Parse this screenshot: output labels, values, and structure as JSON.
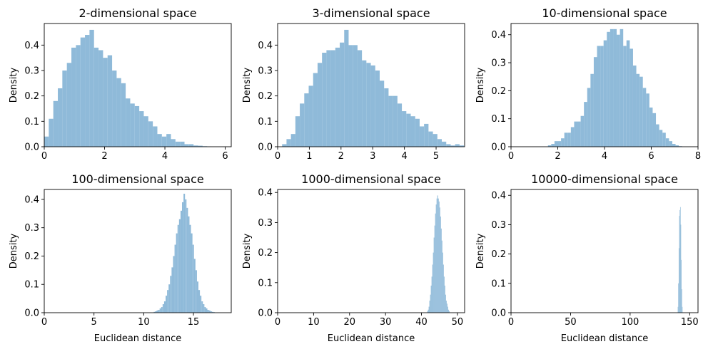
{
  "chart_data": [
    {
      "type": "bar",
      "title": "2-dimensional space",
      "xlabel": "",
      "ylabel": "Density",
      "xlim": [
        0,
        6.2
      ],
      "ylim": [
        0,
        0.485
      ],
      "xticks": [
        0,
        2,
        4,
        6
      ],
      "yticks": [
        0.0,
        0.1,
        0.2,
        0.3,
        0.4
      ],
      "color": "#8fbad9",
      "bins": [
        [
          0.0,
          0.04
        ],
        [
          0.15,
          0.11
        ],
        [
          0.3,
          0.18
        ],
        [
          0.45,
          0.23
        ],
        [
          0.6,
          0.3
        ],
        [
          0.75,
          0.33
        ],
        [
          0.9,
          0.39
        ],
        [
          1.05,
          0.4
        ],
        [
          1.2,
          0.43
        ],
        [
          1.35,
          0.44
        ],
        [
          1.5,
          0.46
        ],
        [
          1.65,
          0.39
        ],
        [
          1.8,
          0.38
        ],
        [
          1.95,
          0.35
        ],
        [
          2.1,
          0.36
        ],
        [
          2.25,
          0.3
        ],
        [
          2.4,
          0.27
        ],
        [
          2.55,
          0.25
        ],
        [
          2.7,
          0.19
        ],
        [
          2.85,
          0.17
        ],
        [
          3.0,
          0.16
        ],
        [
          3.15,
          0.14
        ],
        [
          3.3,
          0.12
        ],
        [
          3.45,
          0.1
        ],
        [
          3.6,
          0.08
        ],
        [
          3.75,
          0.05
        ],
        [
          3.9,
          0.04
        ],
        [
          4.05,
          0.05
        ],
        [
          4.2,
          0.03
        ],
        [
          4.35,
          0.02
        ],
        [
          4.5,
          0.02
        ],
        [
          4.65,
          0.01
        ],
        [
          4.8,
          0.01
        ],
        [
          4.95,
          0.005
        ],
        [
          5.1,
          0.004
        ],
        [
          5.25,
          0.002
        ],
        [
          5.4,
          0.001
        ]
      ],
      "bin_width": 0.15
    },
    {
      "type": "bar",
      "title": "3-dimensional space",
      "xlabel": "",
      "ylabel": "Density",
      "xlim": [
        0,
        5.9
      ],
      "ylim": [
        0,
        0.485
      ],
      "xticks": [
        0,
        1,
        2,
        3,
        4,
        5
      ],
      "yticks": [
        0.0,
        0.1,
        0.2,
        0.3,
        0.4
      ],
      "color": "#8fbad9",
      "bins": [
        [
          0.14,
          0.01
        ],
        [
          0.28,
          0.03
        ],
        [
          0.42,
          0.05
        ],
        [
          0.56,
          0.12
        ],
        [
          0.7,
          0.17
        ],
        [
          0.84,
          0.21
        ],
        [
          0.98,
          0.24
        ],
        [
          1.12,
          0.29
        ],
        [
          1.26,
          0.33
        ],
        [
          1.4,
          0.37
        ],
        [
          1.54,
          0.38
        ],
        [
          1.68,
          0.38
        ],
        [
          1.82,
          0.39
        ],
        [
          1.96,
          0.41
        ],
        [
          2.1,
          0.46
        ],
        [
          2.24,
          0.4
        ],
        [
          2.38,
          0.4
        ],
        [
          2.52,
          0.38
        ],
        [
          2.66,
          0.34
        ],
        [
          2.8,
          0.33
        ],
        [
          2.94,
          0.32
        ],
        [
          3.08,
          0.3
        ],
        [
          3.22,
          0.26
        ],
        [
          3.36,
          0.23
        ],
        [
          3.5,
          0.2
        ],
        [
          3.64,
          0.2
        ],
        [
          3.78,
          0.17
        ],
        [
          3.92,
          0.14
        ],
        [
          4.06,
          0.13
        ],
        [
          4.2,
          0.12
        ],
        [
          4.34,
          0.11
        ],
        [
          4.48,
          0.08
        ],
        [
          4.62,
          0.09
        ],
        [
          4.76,
          0.06
        ],
        [
          4.9,
          0.05
        ],
        [
          5.04,
          0.03
        ],
        [
          5.18,
          0.02
        ],
        [
          5.32,
          0.01
        ],
        [
          5.46,
          0.005
        ],
        [
          5.6,
          0.01
        ],
        [
          5.74,
          0.005
        ]
      ],
      "bin_width": 0.14
    },
    {
      "type": "bar",
      "title": "10-dimensional space",
      "xlabel": "",
      "ylabel": "Density",
      "xlim": [
        0,
        8
      ],
      "ylim": [
        0,
        0.44
      ],
      "xticks": [
        0,
        2,
        4,
        6,
        8
      ],
      "yticks": [
        0.0,
        0.1,
        0.2,
        0.3,
        0.4
      ],
      "color": "#8fbad9",
      "bins": [
        [
          1.58,
          0.005
        ],
        [
          1.72,
          0.01
        ],
        [
          1.86,
          0.02
        ],
        [
          2.0,
          0.02
        ],
        [
          2.14,
          0.03
        ],
        [
          2.28,
          0.05
        ],
        [
          2.42,
          0.05
        ],
        [
          2.56,
          0.07
        ],
        [
          2.7,
          0.09
        ],
        [
          2.84,
          0.09
        ],
        [
          2.98,
          0.11
        ],
        [
          3.12,
          0.16
        ],
        [
          3.26,
          0.21
        ],
        [
          3.4,
          0.26
        ],
        [
          3.54,
          0.32
        ],
        [
          3.68,
          0.36
        ],
        [
          3.82,
          0.36
        ],
        [
          3.96,
          0.38
        ],
        [
          4.1,
          0.41
        ],
        [
          4.24,
          0.42
        ],
        [
          4.38,
          0.42
        ],
        [
          4.52,
          0.4
        ],
        [
          4.66,
          0.42
        ],
        [
          4.8,
          0.36
        ],
        [
          4.94,
          0.38
        ],
        [
          5.08,
          0.35
        ],
        [
          5.22,
          0.29
        ],
        [
          5.36,
          0.26
        ],
        [
          5.5,
          0.25
        ],
        [
          5.64,
          0.21
        ],
        [
          5.78,
          0.19
        ],
        [
          5.92,
          0.14
        ],
        [
          6.06,
          0.12
        ],
        [
          6.2,
          0.08
        ],
        [
          6.34,
          0.06
        ],
        [
          6.48,
          0.05
        ],
        [
          6.62,
          0.03
        ],
        [
          6.76,
          0.02
        ],
        [
          6.9,
          0.01
        ],
        [
          7.04,
          0.005
        ],
        [
          7.18,
          0.002
        ]
      ],
      "bin_width": 0.14
    },
    {
      "type": "bar",
      "title": "100-dimensional space",
      "xlabel": "Euclidean distance",
      "ylabel": "Density",
      "xlim": [
        0,
        18.8
      ],
      "ylim": [
        0,
        0.435
      ],
      "xticks": [
        0,
        5,
        10,
        15
      ],
      "yticks": [
        0.0,
        0.1,
        0.2,
        0.3,
        0.4
      ],
      "color": "#8fbad9",
      "bins": [
        [
          11.0,
          0.003
        ],
        [
          11.15,
          0.005
        ],
        [
          11.3,
          0.008
        ],
        [
          11.45,
          0.01
        ],
        [
          11.6,
          0.015
        ],
        [
          11.75,
          0.02
        ],
        [
          11.9,
          0.03
        ],
        [
          12.05,
          0.04
        ],
        [
          12.2,
          0.06
        ],
        [
          12.35,
          0.08
        ],
        [
          12.5,
          0.1
        ],
        [
          12.65,
          0.13
        ],
        [
          12.8,
          0.16
        ],
        [
          12.95,
          0.2
        ],
        [
          13.1,
          0.24
        ],
        [
          13.25,
          0.28
        ],
        [
          13.4,
          0.31
        ],
        [
          13.55,
          0.33
        ],
        [
          13.7,
          0.36
        ],
        [
          13.85,
          0.39
        ],
        [
          14.0,
          0.42
        ],
        [
          14.15,
          0.4
        ],
        [
          14.3,
          0.37
        ],
        [
          14.45,
          0.34
        ],
        [
          14.6,
          0.31
        ],
        [
          14.75,
          0.28
        ],
        [
          14.9,
          0.24
        ],
        [
          15.05,
          0.19
        ],
        [
          15.2,
          0.15
        ],
        [
          15.35,
          0.11
        ],
        [
          15.5,
          0.08
        ],
        [
          15.65,
          0.06
        ],
        [
          15.8,
          0.04
        ],
        [
          15.95,
          0.03
        ],
        [
          16.1,
          0.02
        ],
        [
          16.25,
          0.015
        ],
        [
          16.4,
          0.01
        ],
        [
          16.55,
          0.008
        ],
        [
          16.7,
          0.005
        ],
        [
          16.85,
          0.003
        ],
        [
          17.0,
          0.002
        ]
      ],
      "bin_width": 0.15
    },
    {
      "type": "bar",
      "title": "1000-dimensional space",
      "xlabel": "Euclidean distance",
      "ylabel": "Density",
      "xlim": [
        0,
        52
      ],
      "ylim": [
        0,
        0.41
      ],
      "xticks": [
        0,
        10,
        20,
        30,
        40,
        50
      ],
      "yticks": [
        0.0,
        0.1,
        0.2,
        0.3,
        0.4
      ],
      "color": "#8fbad9",
      "bins": [
        [
          41.6,
          0.005
        ],
        [
          41.8,
          0.01
        ],
        [
          42.0,
          0.02
        ],
        [
          42.2,
          0.04
        ],
        [
          42.4,
          0.06
        ],
        [
          42.6,
          0.09
        ],
        [
          42.8,
          0.12
        ],
        [
          43.0,
          0.16
        ],
        [
          43.2,
          0.2
        ],
        [
          43.4,
          0.25
        ],
        [
          43.6,
          0.29
        ],
        [
          43.8,
          0.33
        ],
        [
          44.0,
          0.36
        ],
        [
          44.2,
          0.38
        ],
        [
          44.4,
          0.39
        ],
        [
          44.6,
          0.38
        ],
        [
          44.8,
          0.37
        ],
        [
          45.0,
          0.35
        ],
        [
          45.2,
          0.32
        ],
        [
          45.4,
          0.28
        ],
        [
          45.6,
          0.24
        ],
        [
          45.8,
          0.2
        ],
        [
          46.0,
          0.16
        ],
        [
          46.2,
          0.12
        ],
        [
          46.4,
          0.09
        ],
        [
          46.6,
          0.06
        ],
        [
          46.8,
          0.04
        ],
        [
          47.0,
          0.03
        ],
        [
          47.2,
          0.02
        ],
        [
          47.4,
          0.01
        ],
        [
          47.6,
          0.005
        ]
      ],
      "bin_width": 0.2
    },
    {
      "type": "bar",
      "title": "10000-dimensional space",
      "xlabel": "Euclidean distance",
      "ylabel": "Density",
      "xlim": [
        0,
        157
      ],
      "ylim": [
        0,
        0.42
      ],
      "xticks": [
        0,
        50,
        100,
        150
      ],
      "yticks": [
        0.0,
        0.1,
        0.2,
        0.3,
        0.4
      ],
      "color": "#8fbad9",
      "bins": [
        [
          140.0,
          0.02
        ],
        [
          140.4,
          0.1
        ],
        [
          140.8,
          0.22
        ],
        [
          141.2,
          0.33
        ],
        [
          141.6,
          0.35
        ],
        [
          142.0,
          0.36
        ],
        [
          142.4,
          0.3
        ],
        [
          142.8,
          0.18
        ],
        [
          143.2,
          0.08
        ],
        [
          143.6,
          0.02
        ]
      ],
      "bin_width": 0.4
    }
  ]
}
